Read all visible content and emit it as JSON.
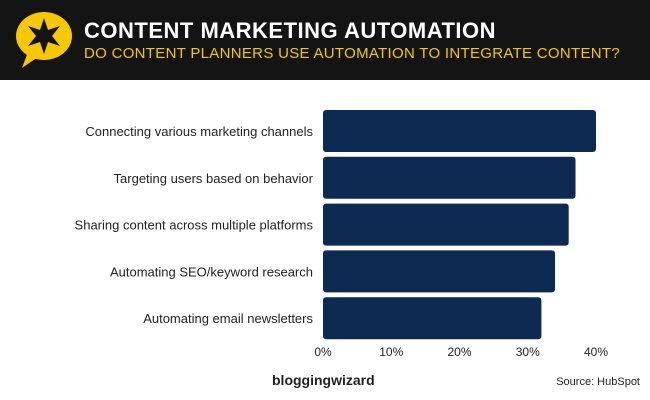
{
  "header": {
    "title": "CONTENT MARKETING AUTOMATION",
    "subtitle": "DO CONTENT PLANNERS USE AUTOMATION TO INTEGRATE CONTENT?"
  },
  "footer": {
    "brand": "bloggingwizard",
    "source": "Source: HubSpot"
  },
  "colors": {
    "bar": "#0d2b52",
    "header_bg": "#141414",
    "accent": "#f5c800"
  },
  "chart_data": {
    "type": "bar",
    "orientation": "horizontal",
    "categories": [
      "Connecting various marketing channels",
      "Targeting users based on behavior",
      "Sharing content across multiple platforms",
      "Automating SEO/keyword research",
      "Automating email newsletters"
    ],
    "values": [
      40,
      37,
      36,
      34,
      32
    ],
    "xlim": [
      0,
      40
    ],
    "xticks": [
      "0%",
      "10%",
      "20%",
      "30%",
      "40%"
    ],
    "title": "CONTENT MARKETING AUTOMATION",
    "xlabel": "",
    "ylabel": "",
    "grid": false
  }
}
